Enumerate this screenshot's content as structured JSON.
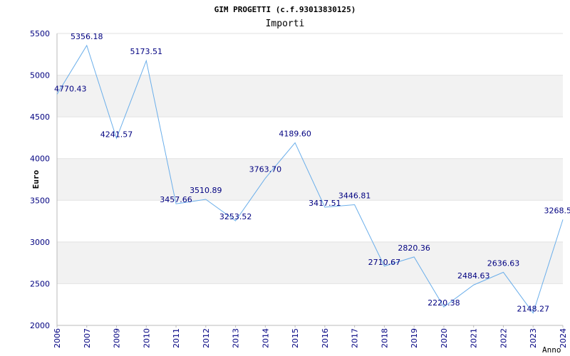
{
  "chart_data": {
    "type": "line",
    "title": "GIM PROGETTI (c.f.93013830125)",
    "subtitle": "Importi",
    "ylabel": "Euro",
    "xlabel": "Anno",
    "ylim": [
      2000,
      5500
    ],
    "yticks": [
      "2000",
      "2500",
      "3000",
      "3500",
      "4000",
      "4500",
      "5000",
      "5500"
    ],
    "grid": "horizontal bands",
    "line_color": "#6aaeea",
    "categories": [
      "2006",
      "2007",
      "2009",
      "2010",
      "2011",
      "2012",
      "2013",
      "2014",
      "2015",
      "2016",
      "2017",
      "2018",
      "2019",
      "2020",
      "2021",
      "2022",
      "2023",
      "2024"
    ],
    "values": [
      4770.43,
      5356.18,
      4241.57,
      5173.51,
      3457.66,
      3510.89,
      3253.52,
      3763.7,
      4189.6,
      3417.51,
      3446.81,
      2710.67,
      2820.36,
      2220.38,
      2484.63,
      2636.63,
      2148.27,
      3268.5
    ],
    "value_labels": [
      "4770.43",
      "5356.18",
      "4241.57",
      "5173.51",
      "3457.66",
      "3510.89",
      "3253.52",
      "3763.70",
      "4189.60",
      "3417.51",
      "3446.81",
      "2710.67",
      "2820.36",
      "2220.38",
      "2484.63",
      "2636.63",
      "2148.27",
      "3268.5"
    ]
  }
}
